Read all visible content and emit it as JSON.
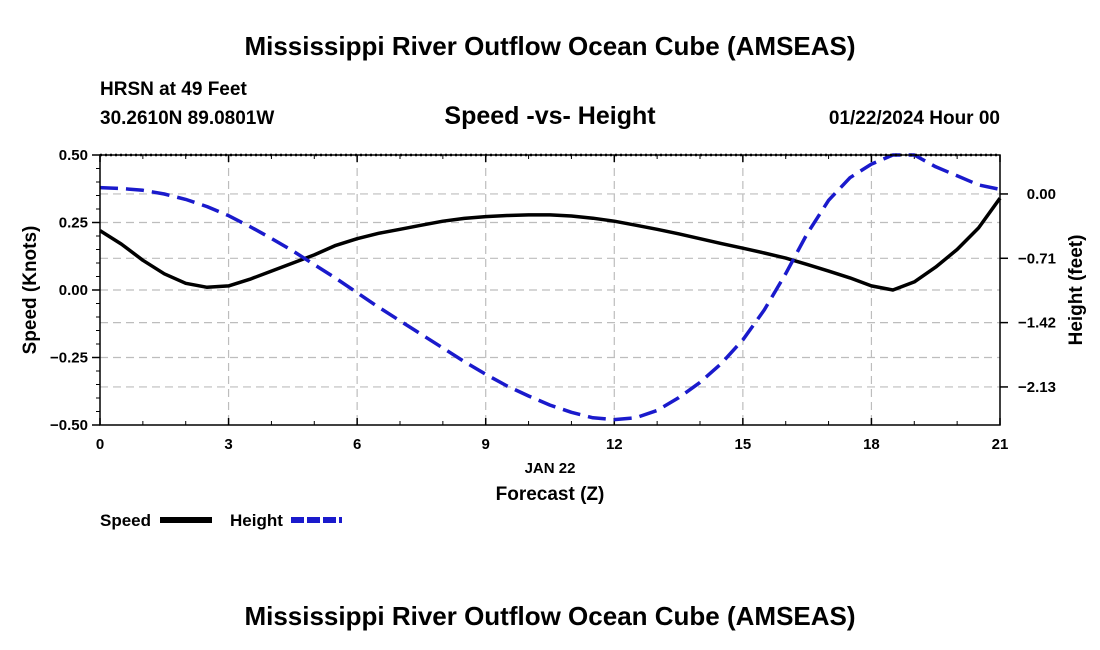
{
  "page": {
    "title": "Mississippi River Outflow Ocean Cube (AMSEAS)",
    "footer_title": "Mississippi River Outflow Ocean Cube (AMSEAS)",
    "station_line": "HRSN at 49 Feet",
    "coords_line": "30.2610N  89.0801W",
    "subtitle": "Speed -vs- Height",
    "date_line": "01/22/2024 Hour 00"
  },
  "chart_data": {
    "type": "line",
    "title": "Speed -vs- Height",
    "xlabel": "Forecast (Z)",
    "xlabel_date": "JAN 22",
    "x_ticks": [
      "0",
      "3",
      "6",
      "9",
      "12",
      "15",
      "18",
      "21"
    ],
    "xlim": [
      0,
      21
    ],
    "left_axis": {
      "label": "Speed (Knots)",
      "ylim": [
        -0.5,
        0.5
      ],
      "ticks": [
        "0.50",
        "0.25",
        "0.00",
        "−0.25",
        "−0.50"
      ]
    },
    "right_axis": {
      "label": "Height (feet)",
      "ylim": [
        -2.55,
        0.43
      ],
      "ticks": [
        "0.00",
        "−0.71",
        "−1.42",
        "−2.13"
      ]
    },
    "grid": true,
    "series": [
      {
        "name": "Speed",
        "axis": "left",
        "color": "#000000",
        "style": "solid",
        "x": [
          0,
          0.5,
          1,
          1.5,
          2,
          2.5,
          3,
          3.5,
          4,
          4.5,
          5,
          5.5,
          6,
          6.5,
          7,
          7.5,
          8,
          8.5,
          9,
          9.5,
          10,
          10.5,
          11,
          11.5,
          12,
          12.5,
          13,
          13.5,
          14,
          14.5,
          15,
          15.5,
          16,
          16.5,
          17,
          17.5,
          18,
          18.5,
          19,
          19.5,
          20,
          20.5,
          21
        ],
        "values": [
          0.22,
          0.17,
          0.11,
          0.06,
          0.025,
          0.01,
          0.015,
          0.04,
          0.07,
          0.1,
          0.13,
          0.165,
          0.19,
          0.21,
          0.225,
          0.24,
          0.255,
          0.265,
          0.272,
          0.276,
          0.278,
          0.278,
          0.274,
          0.266,
          0.255,
          0.24,
          0.225,
          0.208,
          0.19,
          0.172,
          0.155,
          0.137,
          0.118,
          0.095,
          0.07,
          0.045,
          0.015,
          0.0,
          0.03,
          0.085,
          0.15,
          0.23,
          0.34
        ]
      },
      {
        "name": "Height",
        "axis": "right",
        "color": "#1a1acc",
        "style": "dashed",
        "x": [
          0,
          0.5,
          1,
          1.5,
          2,
          2.5,
          3,
          3.5,
          4,
          4.5,
          5,
          5.5,
          6,
          6.5,
          7,
          7.5,
          8,
          8.5,
          9,
          9.5,
          10,
          10.5,
          11,
          11.5,
          12,
          12.5,
          13,
          13.5,
          14,
          14.5,
          15,
          15.5,
          16,
          16.5,
          17,
          17.5,
          18,
          18.5,
          19,
          19.5,
          20,
          20.5,
          21
        ],
        "values": [
          0.07,
          0.06,
          0.04,
          0.0,
          -0.06,
          -0.14,
          -0.24,
          -0.36,
          -0.49,
          -0.63,
          -0.78,
          -0.93,
          -1.09,
          -1.25,
          -1.4,
          -1.55,
          -1.7,
          -1.85,
          -1.99,
          -2.12,
          -2.23,
          -2.33,
          -2.41,
          -2.47,
          -2.49,
          -2.47,
          -2.39,
          -2.25,
          -2.08,
          -1.87,
          -1.61,
          -1.28,
          -0.88,
          -0.44,
          -0.07,
          0.18,
          0.33,
          0.43,
          0.43,
          0.3,
          0.2,
          0.1,
          0.05
        ]
      }
    ],
    "legend": {
      "position": "bottom-left",
      "entries": [
        "Speed",
        "Height"
      ]
    }
  }
}
